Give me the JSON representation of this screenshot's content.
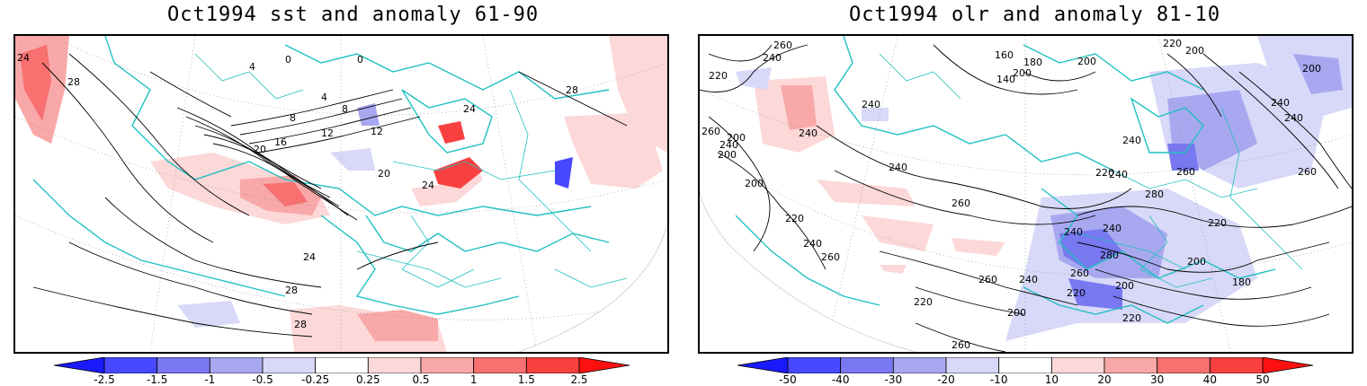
{
  "panels": [
    {
      "title": "Oct1994 sst and anomaly 61-90",
      "contour_labels": [
        "24",
        "28",
        "4",
        "0",
        "0",
        "4",
        "8",
        "8",
        "12",
        "12",
        "16",
        "20",
        "20",
        "24",
        "28",
        "24",
        "28",
        "28",
        "24"
      ],
      "colorbar": {
        "ticks": [
          "-2.5",
          "-1.5",
          "-1",
          "-0.5",
          "-0.25",
          "0.25",
          "0.5",
          "1",
          "1.5",
          "2.5"
        ],
        "colors": [
          "#1a1aff",
          "#4848ff",
          "#7878f0",
          "#a8a8f0",
          "#d8d8f8",
          "#ffffff",
          "#fcd8d8",
          "#f8a8a8",
          "#f87070",
          "#f84040",
          "#ff1010"
        ]
      }
    },
    {
      "title": "Oct1994 olr and anomaly 81-10",
      "contour_labels": [
        "260",
        "240",
        "220",
        "260",
        "240",
        "200",
        "200",
        "240",
        "160",
        "180",
        "200",
        "140",
        "200",
        "220",
        "200",
        "240",
        "240",
        "240",
        "260",
        "240",
        "260",
        "200",
        "220",
        "220",
        "240",
        "260",
        "240",
        "260",
        "280",
        "240",
        "240",
        "220",
        "280",
        "260",
        "220",
        "200",
        "200",
        "220",
        "200",
        "180",
        "260",
        "240",
        "200",
        "240",
        "260",
        "220"
      ],
      "colorbar": {
        "ticks": [
          "-50",
          "-40",
          "-30",
          "-20",
          "-10",
          "10",
          "20",
          "30",
          "40",
          "50"
        ],
        "colors": [
          "#1a1aff",
          "#4848ff",
          "#7878f0",
          "#a8a8f0",
          "#d8d8f8",
          "#ffffff",
          "#fcd8d8",
          "#f8a8a8",
          "#f87070",
          "#f84040",
          "#ff1010"
        ]
      }
    }
  ]
}
